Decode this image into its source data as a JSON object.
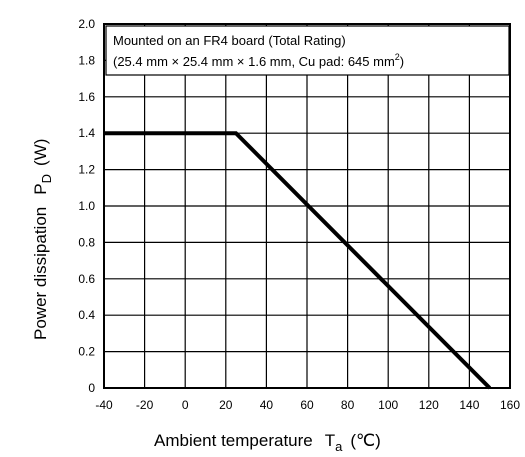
{
  "chart_data": {
    "type": "line",
    "xlabel": "Ambient temperature",
    "xlabel_symbol": "T",
    "xlabel_subscript": "a",
    "xlabel_unit": "(℃)",
    "ylabel": "Power dissipation",
    "ylabel_symbol": "P",
    "ylabel_subscript": "D",
    "ylabel_unit": "(W)",
    "xlim": [
      -40,
      160
    ],
    "ylim": [
      0,
      2.0
    ],
    "x_ticks": [
      -40,
      -20,
      0,
      20,
      40,
      60,
      80,
      100,
      120,
      140,
      160
    ],
    "x_tick_labels": [
      "-40",
      "-20",
      "0",
      "20",
      "40",
      "60",
      "80",
      "100",
      "120",
      "140",
      "160"
    ],
    "y_ticks": [
      0,
      0.2,
      0.4,
      0.6,
      0.8,
      1.0,
      1.2,
      1.4,
      1.6,
      1.8,
      2.0
    ],
    "y_tick_labels": [
      "0",
      "0.2",
      "0.4",
      "0.6",
      "0.8",
      "1.0",
      "1.2",
      "1.4",
      "1.6",
      "1.8",
      "2.0"
    ],
    "grid": true,
    "series": [
      {
        "x": [
          -40,
          25,
          150
        ],
        "y": [
          1.4,
          1.4,
          0
        ],
        "color": "#000000"
      }
    ],
    "annotation": {
      "line1": "Mounted on an FR4 board (Total Rating)",
      "line2": "(25.4 mm × 25.4 mm × 1.6 mm, Cu pad: 645 mm",
      "line2_superscript": "2",
      "line2_end": ")"
    }
  }
}
